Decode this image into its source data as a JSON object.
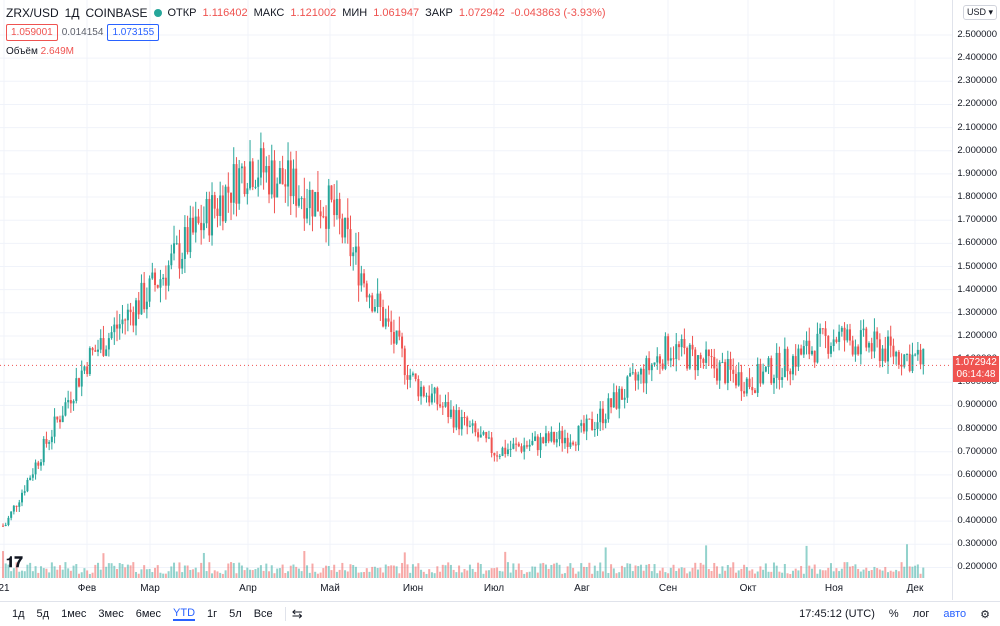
{
  "symbol": "ZRX/USD",
  "interval": "1Д",
  "exchange": "COINBASE",
  "ohlc": {
    "open_label": "ОТКР",
    "open": "1.116402",
    "high_label": "МАКС",
    "high": "1.121002",
    "low_label": "МИН",
    "low": "1.061947",
    "close_label": "ЗАКР",
    "close": "1.072942",
    "change": "-0.043863 (-3.93%)"
  },
  "sell_price": "1.059001",
  "spread": "0.014154",
  "buy_price": "1.073155",
  "volume_label": "Объём",
  "volume_value": "2.649M",
  "currency": "USD",
  "current_price": "1.072942",
  "countdown": "06:14:48",
  "price_ticks": [
    "2.500000",
    "2.400000",
    "2.300000",
    "2.200000",
    "2.100000",
    "2.000000",
    "1.900000",
    "1.800000",
    "1.700000",
    "1.600000",
    "1.500000",
    "1.400000",
    "1.300000",
    "1.200000",
    "1.100000",
    "1.000000",
    "0.900000",
    "0.800000",
    "0.700000",
    "0.600000",
    "0.500000",
    "0.400000",
    "0.300000",
    "0.200000"
  ],
  "time_labels": [
    "21",
    "Фев",
    "Мар",
    "Апр",
    "Май",
    "Июн",
    "Июл",
    "Авг",
    "Сен",
    "Окт",
    "Ноя",
    "Дек"
  ],
  "ranges": [
    "1д",
    "5д",
    "1мес",
    "3мес",
    "6мес",
    "YTD",
    "1г",
    "5л",
    "Все"
  ],
  "active_range": "YTD",
  "clock": "17:45:12 (UTC)",
  "percent_label": "%",
  "log_label": "лог",
  "auto_label": "авто",
  "colors": {
    "up": "#26a69a",
    "down": "#ef5350",
    "accent": "#2962ff"
  },
  "chart_data": {
    "type": "candlestick",
    "x": [
      "2021-01-01",
      "2021-02-01",
      "2021-03-01",
      "2021-04-01",
      "2021-05-01",
      "2021-06-01",
      "2021-07-01",
      "2021-08-01",
      "2021-09-01",
      "2021-10-01",
      "2021-11-01",
      "2021-12-01",
      "2021-12-07"
    ],
    "close": [
      0.38,
      1.1,
      1.4,
      1.95,
      1.75,
      1.0,
      0.7,
      0.78,
      1.15,
      1.0,
      1.2,
      1.1,
      1.072942
    ],
    "ylim": [
      0.2,
      2.55
    ],
    "last_close": 1.072942,
    "volume_last": "2.649M"
  }
}
